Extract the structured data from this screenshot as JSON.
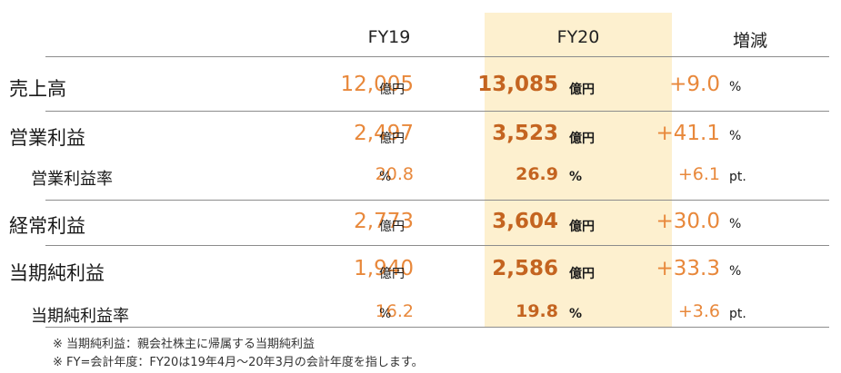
{
  "header": {
    "fy19": "FY19",
    "fy20": "FY20",
    "change": "増減"
  },
  "rows": [
    {
      "name": "売上高",
      "fy19": "12,005",
      "fy19_unit": "億円",
      "fy20": "13,085",
      "fy20_unit": "億円",
      "change": "+9.0",
      "change_unit": "%"
    },
    {
      "name": "営業利益",
      "fy19": "2,497",
      "fy19_unit": "億円",
      "fy20": "3,523",
      "fy20_unit": "億円",
      "change": "+41.1",
      "change_unit": "%"
    },
    {
      "name": "営業利益率",
      "fy19": "20.8",
      "fy19_unit": "%",
      "fy20": "26.9",
      "fy20_unit": "%",
      "change": "+6.1",
      "change_unit": "pt."
    },
    {
      "name": "経常利益",
      "fy19": "2,773",
      "fy19_unit": "億円",
      "fy20": "3,604",
      "fy20_unit": "億円",
      "change": "+30.0",
      "change_unit": "%"
    },
    {
      "name": "当期純利益",
      "fy19": "1,940",
      "fy19_unit": "億円",
      "fy20": "2,586",
      "fy20_unit": "億円",
      "change": "+33.3",
      "change_unit": "%"
    },
    {
      "name": "当期純利益率",
      "fy19": "16.2",
      "fy19_unit": "%",
      "fy20": "19.8",
      "fy20_unit": "%",
      "change": "+3.6",
      "change_unit": "pt."
    }
  ],
  "notes": [
    "※ 当期純利益：親会社株主に帰属する当期純利益",
    "※ FY=会計年度：FY20は19年4月～20年3月の会計年度を指します。"
  ]
}
